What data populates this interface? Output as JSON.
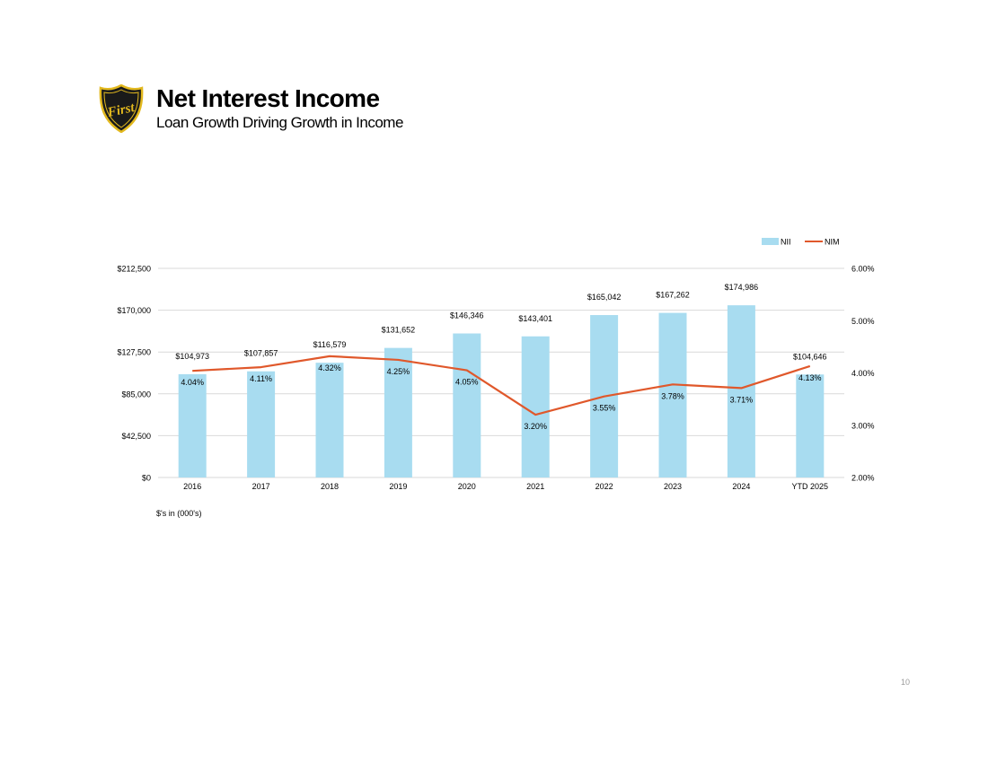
{
  "header": {
    "title": "Net Interest Income",
    "subtitle": "Loan Growth Driving Growth in Income",
    "logo_text": "First"
  },
  "note": "$'s in (000's)",
  "page_number": "10",
  "colors": {
    "bar": "#a8dcf0",
    "line": "#e0582b",
    "grid": "#d9d9d9",
    "logo_gold": "#e2b81e",
    "logo_dark": "#1a1a1a"
  },
  "chart_data": {
    "type": "bar",
    "categories": [
      "2016",
      "2017",
      "2018",
      "2019",
      "2020",
      "2021",
      "2022",
      "2023",
      "2024",
      "YTD 2025"
    ],
    "series": [
      {
        "name": "NII",
        "type": "bar",
        "axis": "left",
        "values": [
          104973,
          107857,
          116579,
          131652,
          146346,
          143401,
          165042,
          167262,
          174986,
          104646
        ],
        "labels": [
          "$104,973",
          "$107,857",
          "$116,579",
          "$131,652",
          "$146,346",
          "$143,401",
          "$165,042",
          "$167,262",
          "$174,986",
          "$104,646"
        ]
      },
      {
        "name": "NIM",
        "type": "line",
        "axis": "right",
        "values": [
          4.04,
          4.11,
          4.32,
          4.25,
          4.05,
          3.2,
          3.55,
          3.78,
          3.71,
          4.13
        ],
        "labels": [
          "4.04%",
          "4.11%",
          "4.32%",
          "4.25%",
          "4.05%",
          "3.20%",
          "3.55%",
          "3.78%",
          "3.71%",
          "4.13%"
        ]
      }
    ],
    "y_left": {
      "range": [
        0,
        212500
      ],
      "ticks": [
        0,
        42500,
        85000,
        127500,
        170000,
        212500
      ],
      "tick_labels": [
        "$0",
        "$42,500",
        "$85,000",
        "$127,500",
        "$170,000",
        "$212,500"
      ]
    },
    "y_right": {
      "range": [
        2.0,
        6.0
      ],
      "ticks": [
        2,
        3,
        4,
        5,
        6
      ],
      "tick_labels": [
        "2.00%",
        "3.00%",
        "4.00%",
        "5.00%",
        "6.00%"
      ]
    },
    "legend": {
      "position": "top-right",
      "entries": [
        "NII",
        "NIM"
      ]
    },
    "grid": true
  }
}
